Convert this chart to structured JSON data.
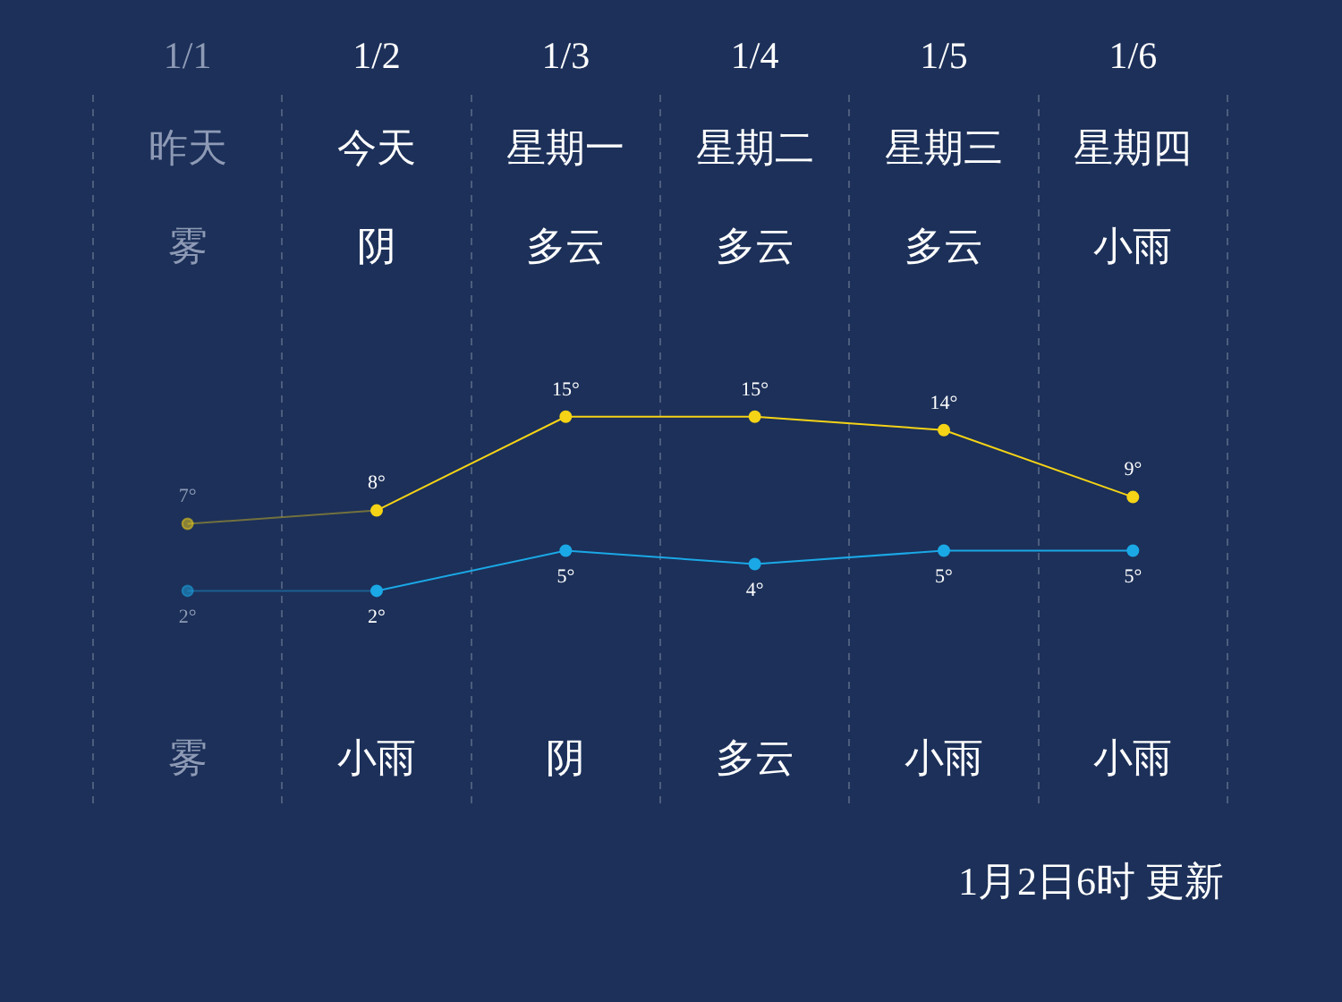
{
  "chart_data": {
    "type": "line",
    "categories": [
      "1/1",
      "1/2",
      "1/3",
      "1/4",
      "1/5",
      "1/6"
    ],
    "series": [
      {
        "color": "#f5d316",
        "values": [
          7,
          8,
          15,
          15,
          14,
          9
        ],
        "value_labels": [
          "7°",
          "8°",
          "15°",
          "15°",
          "14°",
          "9°"
        ]
      },
      {
        "color": "#1ba8e6",
        "values": [
          2,
          2,
          5,
          4,
          5,
          5
        ],
        "value_labels": [
          "2°",
          "2°",
          "5°",
          "4°",
          "5°",
          "5°"
        ]
      }
    ],
    "ylim": [
      -14,
      39
    ],
    "tick_labels": "x",
    "grid": "x",
    "legend": false,
    "marker": "circle",
    "line_style": "solid",
    "annotations": [
      "昨天",
      "今天",
      "星期一",
      "星期二",
      "星期三",
      "星期四",
      "雾",
      "阴",
      "多云",
      "多云",
      "多云",
      "小雨",
      "雾",
      "小雨",
      "阴",
      "多云",
      "小雨",
      "小雨",
      "1月2日6时 更新"
    ]
  }
}
